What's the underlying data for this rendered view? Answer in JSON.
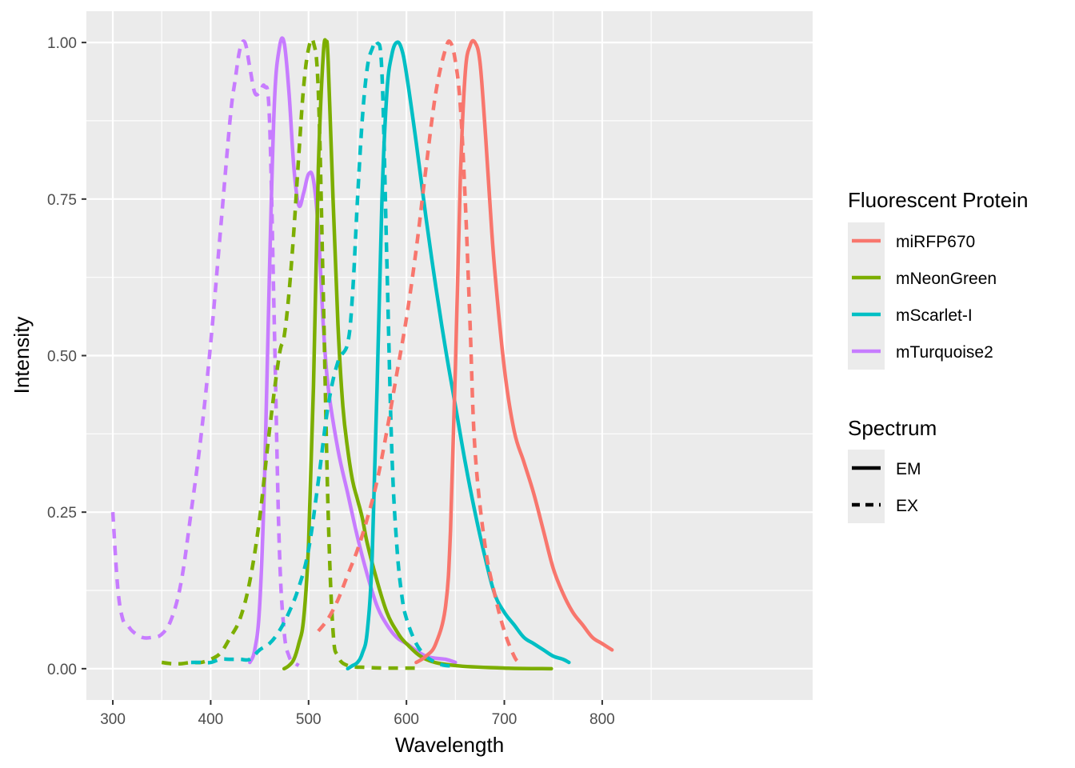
{
  "chart_data": {
    "type": "line",
    "xlabel": "Wavelength",
    "ylabel": "Intensity",
    "xlim": [
      273,
      1015
    ],
    "ylim": [
      -0.05,
      1.05
    ],
    "x_ticks": [
      300,
      400,
      500,
      600,
      700,
      800
    ],
    "y_ticks": [
      0.0,
      0.25,
      0.5,
      0.75,
      1.0
    ],
    "x_tick_labels": [
      "300",
      "400",
      "500",
      "600",
      "700",
      "800"
    ],
    "y_tick_labels": [
      "0.00",
      "0.25",
      "0.50",
      "0.75",
      "1.00"
    ],
    "grid": true,
    "legend_placement": "right",
    "legends": {
      "color": {
        "title": "Fluorescent Protein",
        "entries": [
          {
            "name": "miRFP670",
            "color": "#F8766D"
          },
          {
            "name": "mNeonGreen",
            "color": "#7CAE00"
          },
          {
            "name": "mScarlet-I",
            "color": "#00BFC4"
          },
          {
            "name": "mTurquoise2",
            "color": "#C77CFF"
          }
        ]
      },
      "linetype": {
        "title": "Spectrum",
        "entries": [
          {
            "name": "EM",
            "dash": "solid"
          },
          {
            "name": "EX",
            "dash": "dashed"
          }
        ]
      }
    },
    "series": [
      {
        "protein": "mTurquoise2",
        "spectrum": "EX",
        "color": "#C77CFF",
        "dash": "dashed",
        "x": [
          300,
          305,
          310,
          315,
          320,
          330,
          340,
          350,
          360,
          370,
          380,
          390,
          400,
          410,
          420,
          425,
          430,
          435,
          440,
          445,
          450,
          455,
          460,
          465,
          470,
          475,
          480,
          485,
          490
        ],
        "y": [
          0.25,
          0.13,
          0.08,
          0.07,
          0.06,
          0.05,
          0.05,
          0.055,
          0.08,
          0.14,
          0.25,
          0.37,
          0.52,
          0.7,
          0.88,
          0.94,
          0.99,
          1.0,
          0.96,
          0.92,
          0.92,
          0.93,
          0.88,
          0.55,
          0.2,
          0.06,
          0.02,
          0.01,
          0.005
        ]
      },
      {
        "protein": "mTurquoise2",
        "spectrum": "EM",
        "color": "#C77CFF",
        "dash": "solid",
        "x": [
          440,
          445,
          450,
          455,
          460,
          465,
          470,
          475,
          480,
          485,
          490,
          495,
          500,
          505,
          510,
          515,
          520,
          530,
          540,
          550,
          560,
          570,
          580,
          590,
          600,
          620,
          640,
          650
        ],
        "y": [
          0.01,
          0.03,
          0.1,
          0.3,
          0.63,
          0.9,
          0.99,
          1.0,
          0.92,
          0.8,
          0.74,
          0.76,
          0.79,
          0.78,
          0.7,
          0.55,
          0.45,
          0.35,
          0.28,
          0.21,
          0.15,
          0.1,
          0.07,
          0.05,
          0.04,
          0.02,
          0.015,
          0.01
        ]
      },
      {
        "protein": "mNeonGreen",
        "spectrum": "EX",
        "color": "#7CAE00",
        "dash": "dashed",
        "x": [
          350,
          360,
          370,
          380,
          390,
          400,
          410,
          420,
          430,
          440,
          450,
          460,
          470,
          475,
          480,
          485,
          490,
          495,
          500,
          505,
          510,
          515,
          520,
          525,
          530,
          540,
          560,
          580,
          600,
          610
        ],
        "y": [
          0.01,
          0.008,
          0.008,
          0.01,
          0.01,
          0.015,
          0.025,
          0.05,
          0.08,
          0.14,
          0.24,
          0.38,
          0.5,
          0.53,
          0.6,
          0.7,
          0.82,
          0.93,
          0.99,
          1.0,
          0.92,
          0.6,
          0.25,
          0.06,
          0.02,
          0.005,
          0.002,
          0.001,
          0.001,
          0.001
        ]
      },
      {
        "protein": "mNeonGreen",
        "spectrum": "EM",
        "color": "#7CAE00",
        "dash": "solid",
        "x": [
          475,
          480,
          485,
          490,
          495,
          500,
          505,
          510,
          515,
          518,
          520,
          525,
          530,
          535,
          540,
          545,
          550,
          555,
          560,
          570,
          580,
          590,
          600,
          620,
          650,
          700,
          748
        ],
        "y": [
          0.0,
          0.005,
          0.015,
          0.04,
          0.08,
          0.2,
          0.45,
          0.8,
          0.98,
          1.0,
          0.97,
          0.75,
          0.55,
          0.42,
          0.35,
          0.3,
          0.27,
          0.24,
          0.2,
          0.14,
          0.09,
          0.06,
          0.04,
          0.015,
          0.005,
          0.001,
          0.0
        ]
      },
      {
        "protein": "mScarlet-I",
        "spectrum": "EX",
        "color": "#00BFC4",
        "dash": "dashed",
        "x": [
          380,
          390,
          400,
          410,
          420,
          430,
          440,
          450,
          460,
          470,
          480,
          490,
          500,
          510,
          520,
          530,
          540,
          545,
          550,
          555,
          560,
          565,
          570,
          575,
          580,
          585,
          590,
          595,
          600,
          610,
          620,
          630,
          640,
          650
        ],
        "y": [
          0.01,
          0.01,
          0.01,
          0.015,
          0.015,
          0.015,
          0.015,
          0.03,
          0.04,
          0.06,
          0.09,
          0.13,
          0.19,
          0.3,
          0.42,
          0.49,
          0.52,
          0.6,
          0.75,
          0.88,
          0.96,
          0.99,
          1.0,
          0.95,
          0.65,
          0.35,
          0.2,
          0.12,
          0.08,
          0.04,
          0.02,
          0.01,
          0.005,
          0.005
        ]
      },
      {
        "protein": "mScarlet-I",
        "spectrum": "EM",
        "color": "#00BFC4",
        "dash": "solid",
        "x": [
          540,
          545,
          550,
          555,
          560,
          565,
          570,
          575,
          580,
          585,
          590,
          595,
          600,
          610,
          620,
          630,
          640,
          650,
          660,
          670,
          680,
          690,
          700,
          710,
          720,
          730,
          740,
          750,
          760,
          766
        ],
        "y": [
          0.0,
          0.005,
          0.01,
          0.025,
          0.06,
          0.18,
          0.45,
          0.75,
          0.92,
          0.98,
          1.0,
          0.99,
          0.95,
          0.84,
          0.72,
          0.61,
          0.51,
          0.42,
          0.33,
          0.25,
          0.18,
          0.12,
          0.09,
          0.07,
          0.05,
          0.04,
          0.03,
          0.02,
          0.015,
          0.01
        ]
      },
      {
        "protein": "miRFP670",
        "spectrum": "EX",
        "color": "#F8766D",
        "dash": "dashed",
        "x": [
          510,
          520,
          530,
          540,
          550,
          560,
          570,
          580,
          590,
          600,
          610,
          620,
          630,
          640,
          645,
          650,
          655,
          660,
          665,
          670,
          680,
          690,
          700,
          710,
          715
        ],
        "y": [
          0.06,
          0.08,
          0.11,
          0.15,
          0.19,
          0.24,
          0.3,
          0.38,
          0.47,
          0.56,
          0.67,
          0.8,
          0.92,
          0.99,
          1.0,
          0.97,
          0.9,
          0.75,
          0.55,
          0.35,
          0.2,
          0.12,
          0.06,
          0.02,
          0.01
        ]
      },
      {
        "protein": "miRFP670",
        "spectrum": "EM",
        "color": "#F8766D",
        "dash": "solid",
        "x": [
          610,
          620,
          630,
          640,
          645,
          650,
          655,
          660,
          665,
          670,
          675,
          680,
          685,
          690,
          700,
          710,
          720,
          730,
          740,
          750,
          760,
          770,
          780,
          790,
          800,
          810
        ],
        "y": [
          0.01,
          0.02,
          0.04,
          0.1,
          0.22,
          0.48,
          0.78,
          0.95,
          0.995,
          1.0,
          0.97,
          0.87,
          0.75,
          0.64,
          0.48,
          0.38,
          0.33,
          0.28,
          0.22,
          0.16,
          0.12,
          0.09,
          0.07,
          0.05,
          0.04,
          0.03
        ]
      }
    ]
  }
}
